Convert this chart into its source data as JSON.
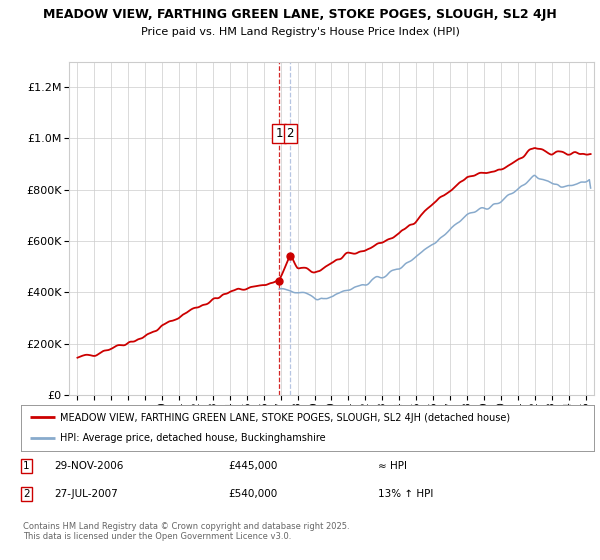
{
  "title": "MEADOW VIEW, FARTHING GREEN LANE, STOKE POGES, SLOUGH, SL2 4JH",
  "subtitle": "Price paid vs. HM Land Registry's House Price Index (HPI)",
  "legend_line1": "MEADOW VIEW, FARTHING GREEN LANE, STOKE POGES, SLOUGH, SL2 4JH (detached house)",
  "legend_line2": "HPI: Average price, detached house, Buckinghamshire",
  "footnote": "Contains HM Land Registry data © Crown copyright and database right 2025.\nThis data is licensed under the Open Government Licence v3.0.",
  "sale1_label": "1",
  "sale1_date": "29-NOV-2006",
  "sale1_price": "£445,000",
  "sale1_hpi": "≈ HPI",
  "sale2_label": "2",
  "sale2_date": "27-JUL-2007",
  "sale2_price": "£540,000",
  "sale2_hpi": "13% ↑ HPI",
  "sale1_x": 2006.91,
  "sale2_x": 2007.57,
  "sale1_y": 445000,
  "sale2_y": 540000,
  "ylim": [
    0,
    1300000
  ],
  "xlim": [
    1994.5,
    2025.5
  ],
  "yticks": [
    0,
    200000,
    400000,
    600000,
    800000,
    1000000,
    1200000
  ],
  "xticks": [
    1995,
    1996,
    1997,
    1998,
    1999,
    2000,
    2001,
    2002,
    2003,
    2004,
    2005,
    2006,
    2007,
    2008,
    2009,
    2010,
    2011,
    2012,
    2013,
    2014,
    2015,
    2016,
    2017,
    2018,
    2019,
    2020,
    2021,
    2022,
    2023,
    2024,
    2025
  ],
  "red_color": "#cc0000",
  "blue_color": "#88aacc",
  "blue_vline_color": "#aabbdd",
  "grid_color": "#cccccc",
  "background_color": "#ffffff"
}
